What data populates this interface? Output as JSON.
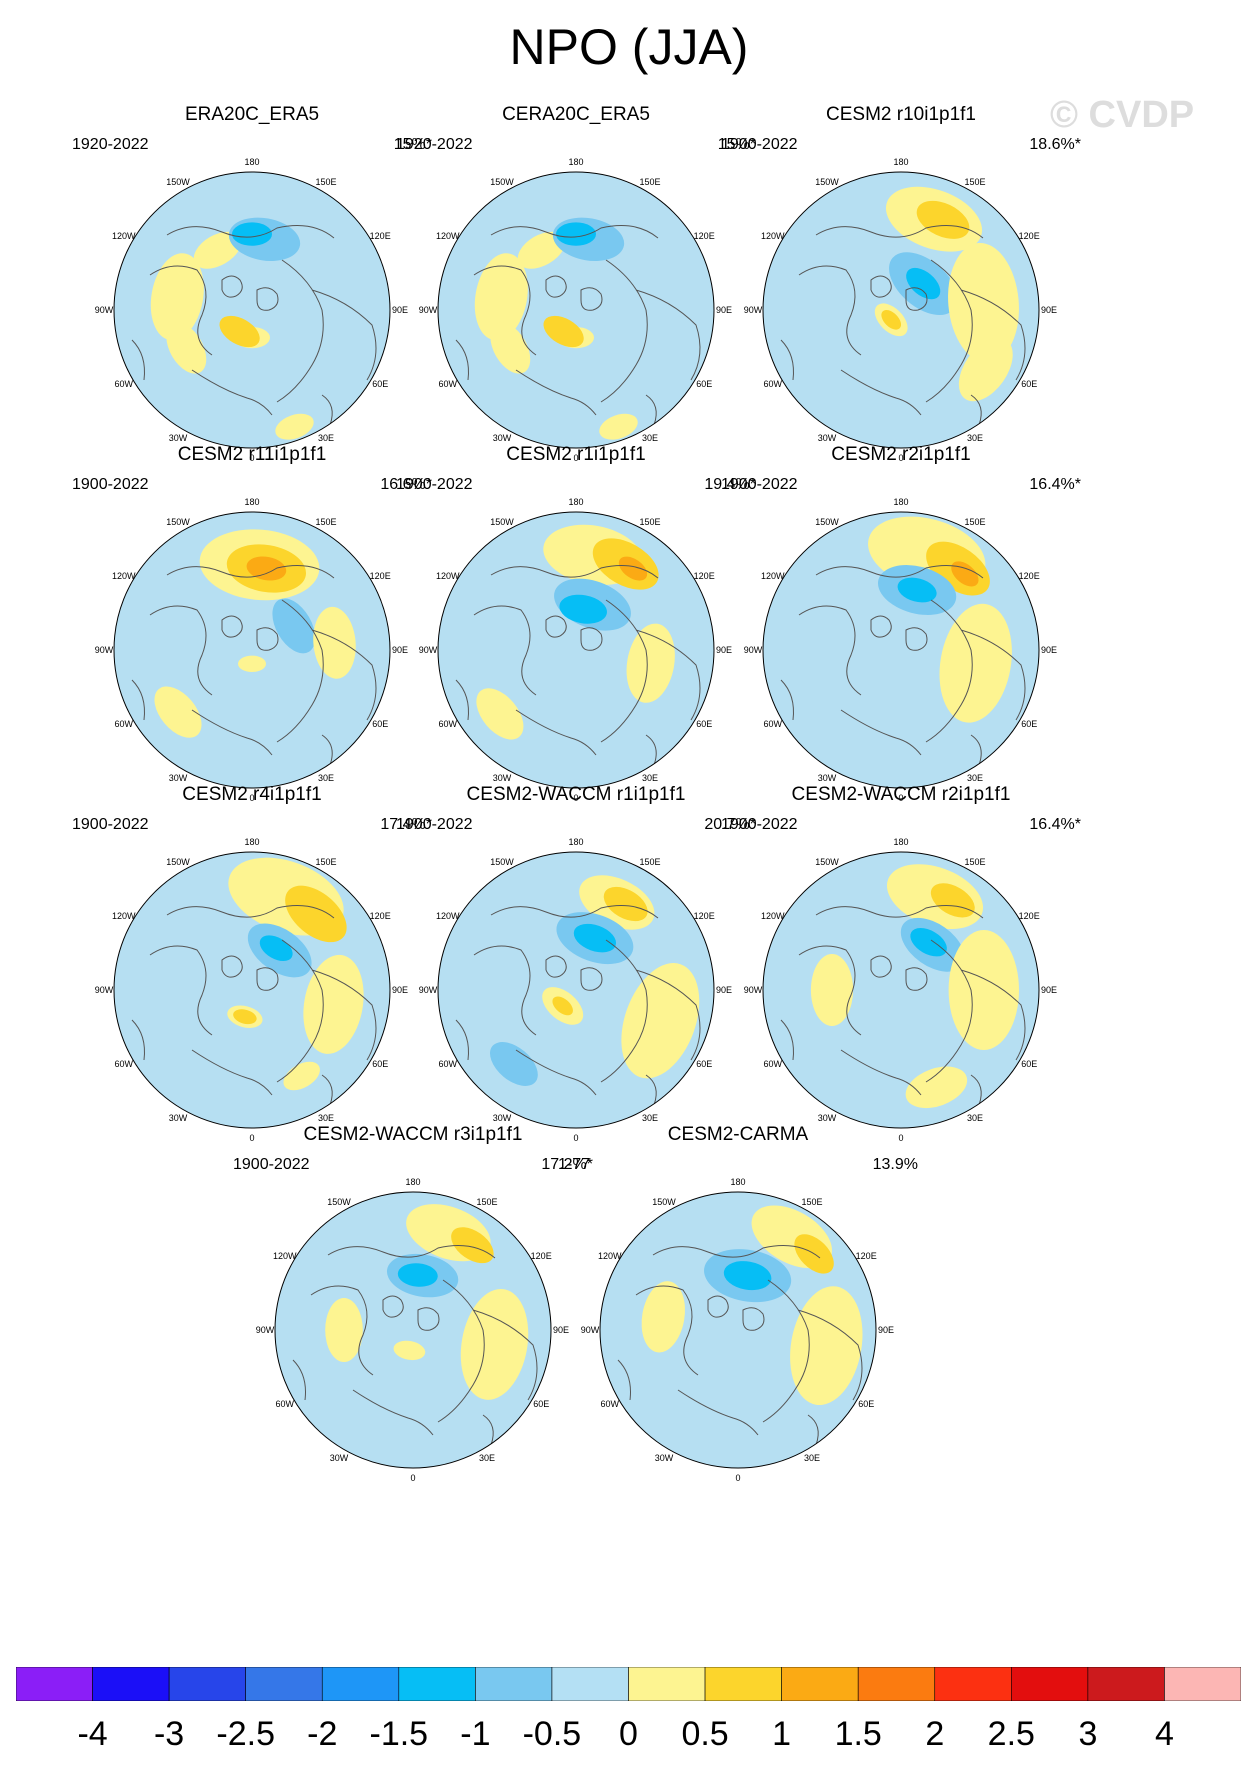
{
  "title": "NPO (JJA)",
  "watermark": "© CVDP",
  "colors": {
    "ocean": "#b6dff2",
    "coast": "#555555",
    "scale": [
      "#8b1ef7",
      "#1b0ff7",
      "#2745ea",
      "#3577e8",
      "#1e96f7",
      "#06bef5",
      "#79c8f0",
      "#b4e0f4",
      "#fdf491",
      "#fcd52c",
      "#fbaa14",
      "#fb7b10",
      "#fc3011",
      "#e30e0e",
      "#cc1a1d",
      "#fcb6b4"
    ]
  },
  "longitude_labels": [
    "180",
    "150W",
    "150E",
    "120W",
    "120E",
    "90W",
    "90E",
    "60W",
    "60E",
    "30W",
    "30E",
    "0"
  ],
  "panels": [
    {
      "title": "ERA20C_ERA5",
      "period": "1920-2022",
      "pct": "15%*"
    },
    {
      "title": "CERA20C_ERA5",
      "period": "1920-2022",
      "pct": "15%*"
    },
    {
      "title": "CESM2 r10i1p1f1",
      "period": "1900-2022",
      "pct": "18.6%*"
    },
    {
      "title": "CESM2 r11i1p1f1",
      "period": "1900-2022",
      "pct": "16.6%*"
    },
    {
      "title": "CESM2 r1i1p1f1",
      "period": "1900-2022",
      "pct": "19.4%*"
    },
    {
      "title": "CESM2 r2i1p1f1",
      "period": "1900-2022",
      "pct": "16.4%*"
    },
    {
      "title": "CESM2 r4i1p1f1",
      "period": "1900-2022",
      "pct": "17.4%*"
    },
    {
      "title": "CESM2-WACCM r1i1p1f1",
      "period": "1900-2022",
      "pct": "20.7%*"
    },
    {
      "title": "CESM2-WACCM r2i1p1f1",
      "period": "1900-2022",
      "pct": "16.4%*"
    },
    {
      "title": "CESM2-WACCM r3i1p1f1",
      "period": "1900-2022",
      "pct": "17.2%*"
    },
    {
      "title": "CESM2-CARMA",
      "period": "1-77",
      "pct": "13.9%"
    }
  ],
  "chart_data": {
    "type": "polar-contour-map-panels",
    "variable": "NPO regression pattern, JJA",
    "colorbar": {
      "levels": [
        -4,
        -3,
        -2.5,
        -2,
        -1.5,
        -1,
        -0.5,
        0,
        0.5,
        1,
        1.5,
        2,
        2.5,
        3,
        4
      ],
      "labels": [
        "-4",
        "-3",
        "-2.5",
        "-2",
        "-1.5",
        "-1",
        "-0.5",
        "0",
        "0.5",
        "1",
        "1.5",
        "2",
        "2.5",
        "3",
        "4"
      ]
    },
    "features": [
      {
        "panel": 0,
        "blobs": [
          [
            0,
            0.2,
            0.09,
            "yellow"
          ],
          [
            -30,
            0.18,
            0.11,
            "orange"
          ],
          [
            -150,
            0.5,
            0.13,
            "yellow"
          ],
          [
            170,
            0.52,
            0.18,
            "lightblue"
          ],
          [
            180,
            0.55,
            0.1,
            "blue"
          ],
          [
            -100,
            0.55,
            0.22,
            "yellow"
          ],
          [
            -60,
            0.55,
            0.14,
            "yellow"
          ],
          [
            20,
            0.9,
            0.1,
            "yellow"
          ]
        ]
      },
      {
        "panel": 1,
        "blobs": [
          [
            0,
            0.2,
            0.09,
            "yellow"
          ],
          [
            -30,
            0.18,
            0.11,
            "orange"
          ],
          [
            -150,
            0.5,
            0.13,
            "yellow"
          ],
          [
            170,
            0.52,
            0.18,
            "lightblue"
          ],
          [
            180,
            0.55,
            0.1,
            "blue"
          ],
          [
            -100,
            0.55,
            0.22,
            "yellow"
          ],
          [
            -60,
            0.55,
            0.14,
            "yellow"
          ],
          [
            20,
            0.9,
            0.1,
            "yellow"
          ]
        ]
      },
      {
        "panel": 2,
        "blobs": [
          [
            160,
            0.7,
            0.25,
            "yellow"
          ],
          [
            155,
            0.72,
            0.14,
            "orange"
          ],
          [
            140,
            0.25,
            0.2,
            "lightblue"
          ],
          [
            140,
            0.25,
            0.1,
            "blue"
          ],
          [
            -45,
            0.1,
            0.1,
            "yellow"
          ],
          [
            -45,
            0.1,
            0.06,
            "orange"
          ],
          [
            95,
            0.6,
            0.3,
            "yellow"
          ],
          [
            55,
            0.75,
            0.18,
            "yellow"
          ]
        ]
      },
      {
        "panel": 3,
        "blobs": [
          [
            175,
            0.62,
            0.3,
            "yellow"
          ],
          [
            170,
            0.6,
            0.2,
            "orange"
          ],
          [
            170,
            0.6,
            0.1,
            "deeporange"
          ],
          [
            120,
            0.35,
            0.15,
            "lightblue"
          ],
          [
            0,
            0.1,
            0.07,
            "yellow"
          ],
          [
            -50,
            0.7,
            0.15,
            "yellow"
          ],
          [
            95,
            0.6,
            0.18,
            "yellow"
          ]
        ]
      },
      {
        "panel": 4,
        "blobs": [
          [
            170,
            0.7,
            0.25,
            "yellow"
          ],
          [
            150,
            0.72,
            0.18,
            "orange"
          ],
          [
            145,
            0.72,
            0.08,
            "deeporange"
          ],
          [
            160,
            0.35,
            0.2,
            "lightblue"
          ],
          [
            170,
            0.3,
            0.12,
            "blue"
          ],
          [
            -50,
            0.72,
            0.15,
            "yellow"
          ],
          [
            80,
            0.55,
            0.2,
            "yellow"
          ]
        ]
      },
      {
        "panel": 5,
        "blobs": [
          [
            165,
            0.72,
            0.3,
            "yellow"
          ],
          [
            145,
            0.72,
            0.18,
            "orange"
          ],
          [
            140,
            0.72,
            0.08,
            "deeporange"
          ],
          [
            165,
            0.45,
            0.2,
            "lightblue"
          ],
          [
            165,
            0.45,
            0.1,
            "blue"
          ],
          [
            80,
            0.55,
            0.3,
            "yellow"
          ]
        ]
      },
      {
        "panel": 6,
        "blobs": [
          [
            160,
            0.72,
            0.3,
            "yellow"
          ],
          [
            140,
            0.72,
            0.18,
            "orange"
          ],
          [
            145,
            0.35,
            0.18,
            "lightblue"
          ],
          [
            150,
            0.35,
            0.09,
            "blue"
          ],
          [
            -15,
            0.2,
            0.09,
            "yellow"
          ],
          [
            -15,
            0.2,
            0.06,
            "orange"
          ],
          [
            80,
            0.6,
            0.25,
            "yellow"
          ],
          [
            30,
            0.72,
            0.1,
            "yellow"
          ]
        ]
      },
      {
        "panel": 7,
        "blobs": [
          [
            155,
            0.7,
            0.2,
            "yellow"
          ],
          [
            150,
            0.72,
            0.12,
            "orange"
          ],
          [
            160,
            0.4,
            0.2,
            "lightblue"
          ],
          [
            160,
            0.4,
            0.11,
            "blue"
          ],
          [
            -40,
            0.15,
            0.12,
            "yellow"
          ],
          [
            -40,
            0.15,
            0.06,
            "orange"
          ],
          [
            70,
            0.65,
            0.3,
            "yellow"
          ],
          [
            -40,
            0.7,
            0.14,
            "lightblue"
          ]
        ]
      },
      {
        "panel": 8,
        "blobs": [
          [
            160,
            0.72,
            0.25,
            "yellow"
          ],
          [
            150,
            0.75,
            0.12,
            "orange"
          ],
          [
            145,
            0.4,
            0.18,
            "lightblue"
          ],
          [
            150,
            0.4,
            0.1,
            "blue"
          ],
          [
            90,
            0.6,
            0.3,
            "yellow"
          ],
          [
            -90,
            0.5,
            0.18,
            "yellow"
          ],
          [
            20,
            0.75,
            0.16,
            "yellow"
          ]
        ]
      },
      {
        "panel": 9,
        "blobs": [
          [
            160,
            0.75,
            0.22,
            "yellow"
          ],
          [
            145,
            0.75,
            0.12,
            "orange"
          ],
          [
            170,
            0.4,
            0.18,
            "lightblue"
          ],
          [
            175,
            0.4,
            0.1,
            "blue"
          ],
          [
            -10,
            0.15,
            0.08,
            "yellow"
          ],
          [
            80,
            0.6,
            0.28,
            "yellow"
          ],
          [
            -90,
            0.5,
            0.16,
            "yellow"
          ]
        ]
      },
      {
        "panel": 10,
        "blobs": [
          [
            150,
            0.78,
            0.22,
            "yellow"
          ],
          [
            135,
            0.78,
            0.12,
            "orange"
          ],
          [
            170,
            0.4,
            0.22,
            "lightblue"
          ],
          [
            170,
            0.4,
            0.12,
            "blue"
          ],
          [
            80,
            0.65,
            0.3,
            "yellow"
          ],
          [
            -100,
            0.55,
            0.18,
            "yellow"
          ]
        ]
      }
    ]
  }
}
